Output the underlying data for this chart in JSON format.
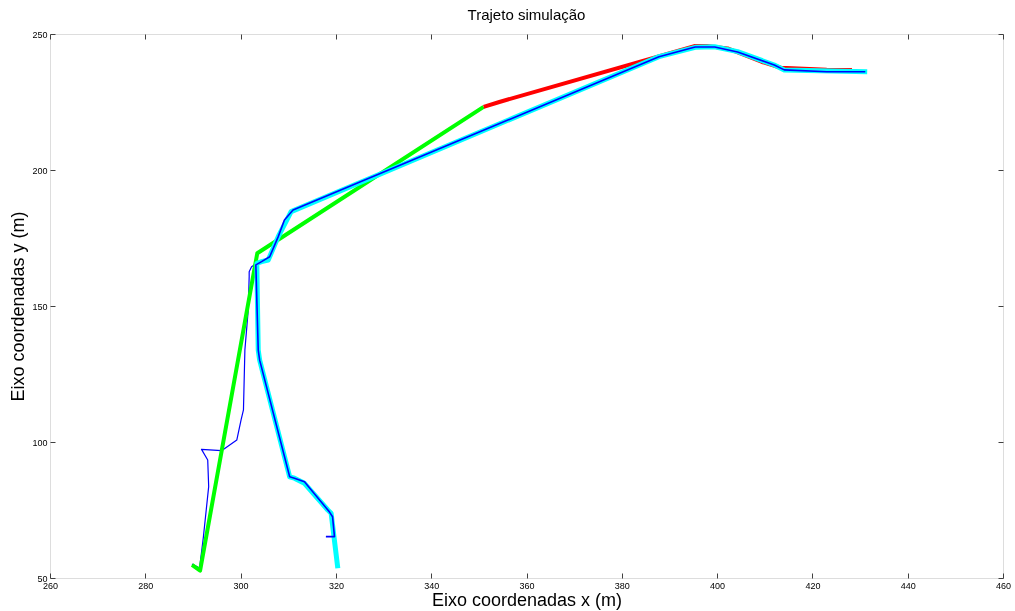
{
  "chart_data": {
    "type": "line",
    "title": "Trajeto simulação",
    "xlabel": "Eixo coordenadas x (m)",
    "ylabel": "Eixo coordenadas y (m)",
    "xlim": [
      260,
      460
    ],
    "ylim": [
      50,
      250
    ],
    "xticks": [
      260,
      280,
      300,
      320,
      340,
      360,
      380,
      400,
      420,
      440,
      460
    ],
    "yticks": [
      50,
      100,
      150,
      200,
      250
    ],
    "grid": false,
    "marker": "none",
    "line_style": "solid",
    "series": [
      {
        "color": "#0000ff",
        "x": [
          289.8,
          291.4,
          292.2,
          293.3,
          293.1,
          291.8,
          296.0,
          299.2,
          300.1,
          300.6,
          300.9,
          301.6,
          301.8,
          301.8,
          302.3,
          303.4
        ],
        "values": [
          55.1,
          53.7,
          65.2,
          83.6,
          93.4,
          97.3,
          96.8,
          100.7,
          108.1,
          111.8,
          133.8,
          148.5,
          160.8,
          162.6,
          164.4,
          165.7
        ]
      },
      {
        "color": "#00ff00",
        "x": [
          289.8,
          291.5,
          303.5,
          351.0
        ],
        "values": [
          54.8,
          52.7,
          169.4,
          223.2
        ]
      },
      {
        "color": "#ff0000",
        "x": [
          351.0,
          354.3,
          395.4,
          397.9,
          402.2,
          409.3,
          413.4,
          423.0,
          428.3
        ],
        "values": [
          223.2,
          225.0,
          245.6,
          245.6,
          244.7,
          239.8,
          237.6,
          236.9,
          236.8
        ]
      },
      {
        "color": "#00ffff",
        "x": [
          320.4,
          319.0,
          318.3,
          313.4,
          311.3,
          310.3,
          304.0,
          303.7,
          303.4,
          304.4,
          305.8,
          307.9,
          310.6,
          387.8,
          395.4,
          399.5,
          404.3,
          412.0,
          414.1,
          431.5
        ],
        "values": [
          53.6,
          73.8,
          75.0,
          84.8,
          86.7,
          87.2,
          130.1,
          133.8,
          165.7,
          166.3,
          166.9,
          175.5,
          184.7,
          241.7,
          245.1,
          245.3,
          243.5,
          238.6,
          236.8,
          236.1
        ]
      },
      {
        "color": "#0000ff",
        "x": [
          317.9,
          319.7,
          319.3,
          318.6,
          313.4,
          311.3,
          310.3,
          304.0,
          303.7,
          303.2,
          304.4,
          306.1,
          307.9,
          309.2,
          311.0,
          387.8,
          395.4,
          399.5,
          404.3,
          412.0,
          414.1,
          423.0,
          431.1
        ],
        "values": [
          65.2,
          65.2,
          72.5,
          74.4,
          85.4,
          86.7,
          87.2,
          130.1,
          133.8,
          165.1,
          166.3,
          168.1,
          175.5,
          181.6,
          185.3,
          241.6,
          245.2,
          245.2,
          243.4,
          238.6,
          236.8,
          236.1,
          236.1
        ]
      }
    ]
  }
}
